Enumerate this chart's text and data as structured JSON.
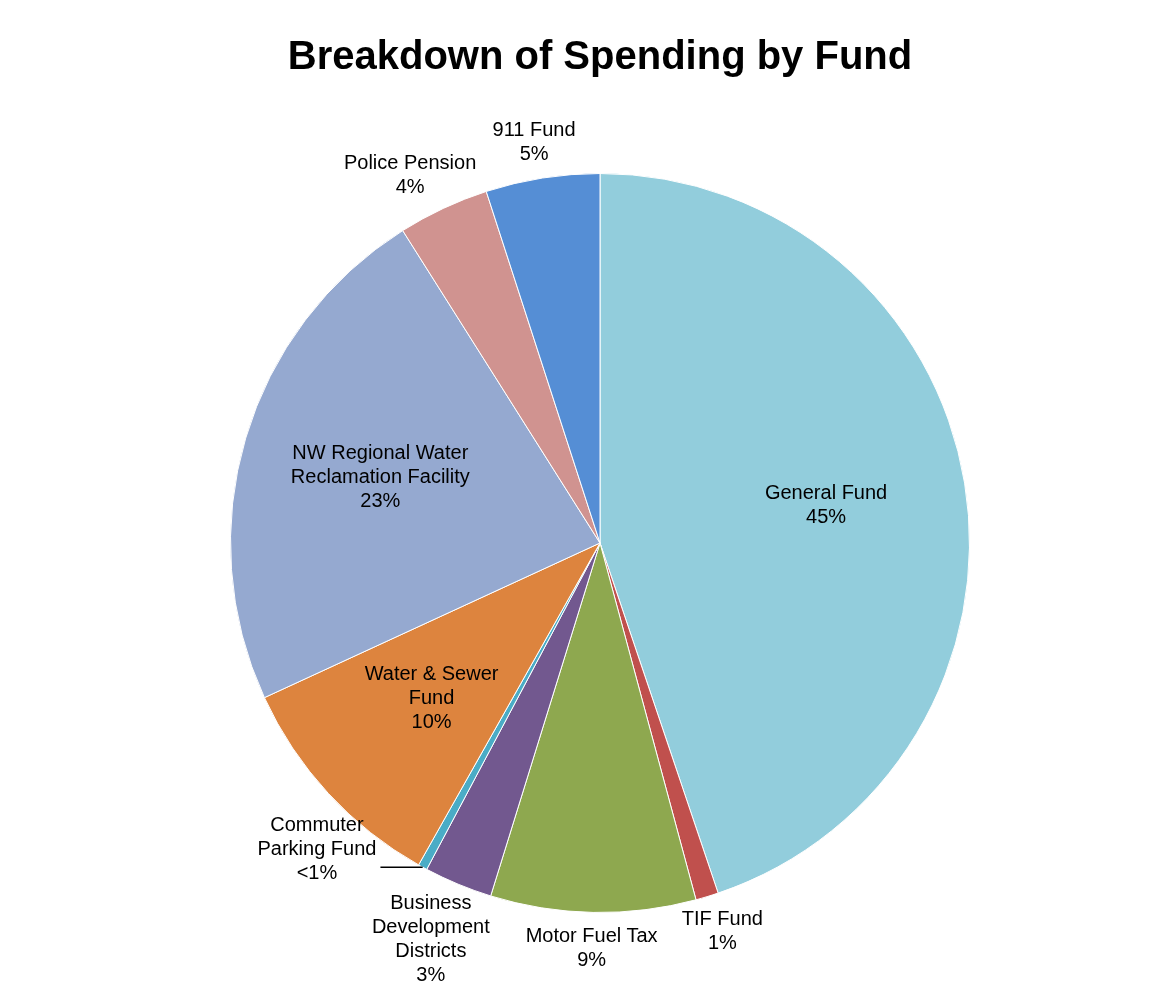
{
  "chart_data": {
    "type": "pie",
    "title": "Breakdown of Spending by Fund",
    "categories": [
      "General Fund",
      "TIF Fund",
      "Motor Fuel Tax",
      "Business Development Districts",
      "Commuter Parking Fund",
      "Water & Sewer Fund",
      "NW Regional Water Reclamation Facility",
      "Police Pension",
      "911 Fund"
    ],
    "values": [
      45,
      1,
      9,
      3,
      0.4,
      10,
      23,
      4,
      5
    ],
    "value_labels": [
      "45%",
      "1%",
      "9%",
      "3%",
      "<1%",
      "10%",
      "23%",
      "4%",
      "5%"
    ],
    "colors": [
      "#92cddc",
      "#c0504d",
      "#8ea84f",
      "#72588f",
      "#4aacc6",
      "#dd843e",
      "#95a9d0",
      "#d09390",
      "#558ed5"
    ],
    "legend": false
  }
}
